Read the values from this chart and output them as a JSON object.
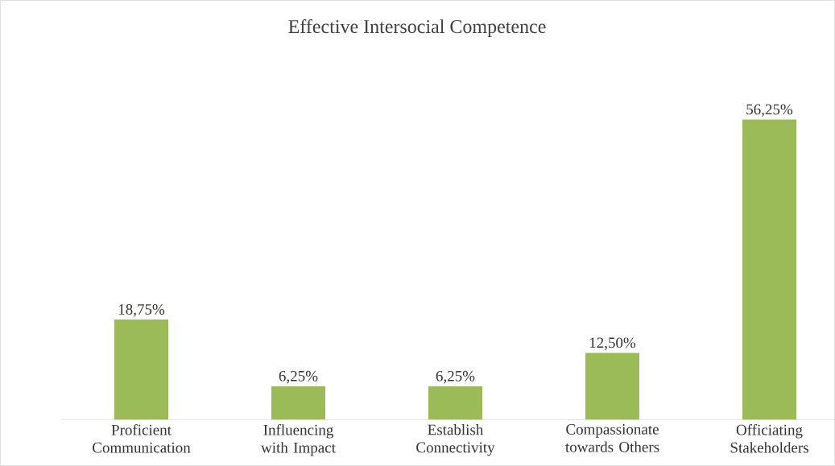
{
  "chart_data": {
    "type": "bar",
    "title": "Effective Intersocial Competence",
    "categories": [
      "Proficient Communication",
      "Influencing with Impact",
      "Establish Connectivity",
      "Compassionate towards Others",
      "Officiating Stakeholders"
    ],
    "values": [
      18.75,
      6.25,
      6.25,
      12.5,
      56.25
    ],
    "value_labels": [
      "18,75%",
      "6,25%",
      "6,25%",
      "12,50%",
      "56,25%"
    ],
    "color": "#9bbb59"
  }
}
